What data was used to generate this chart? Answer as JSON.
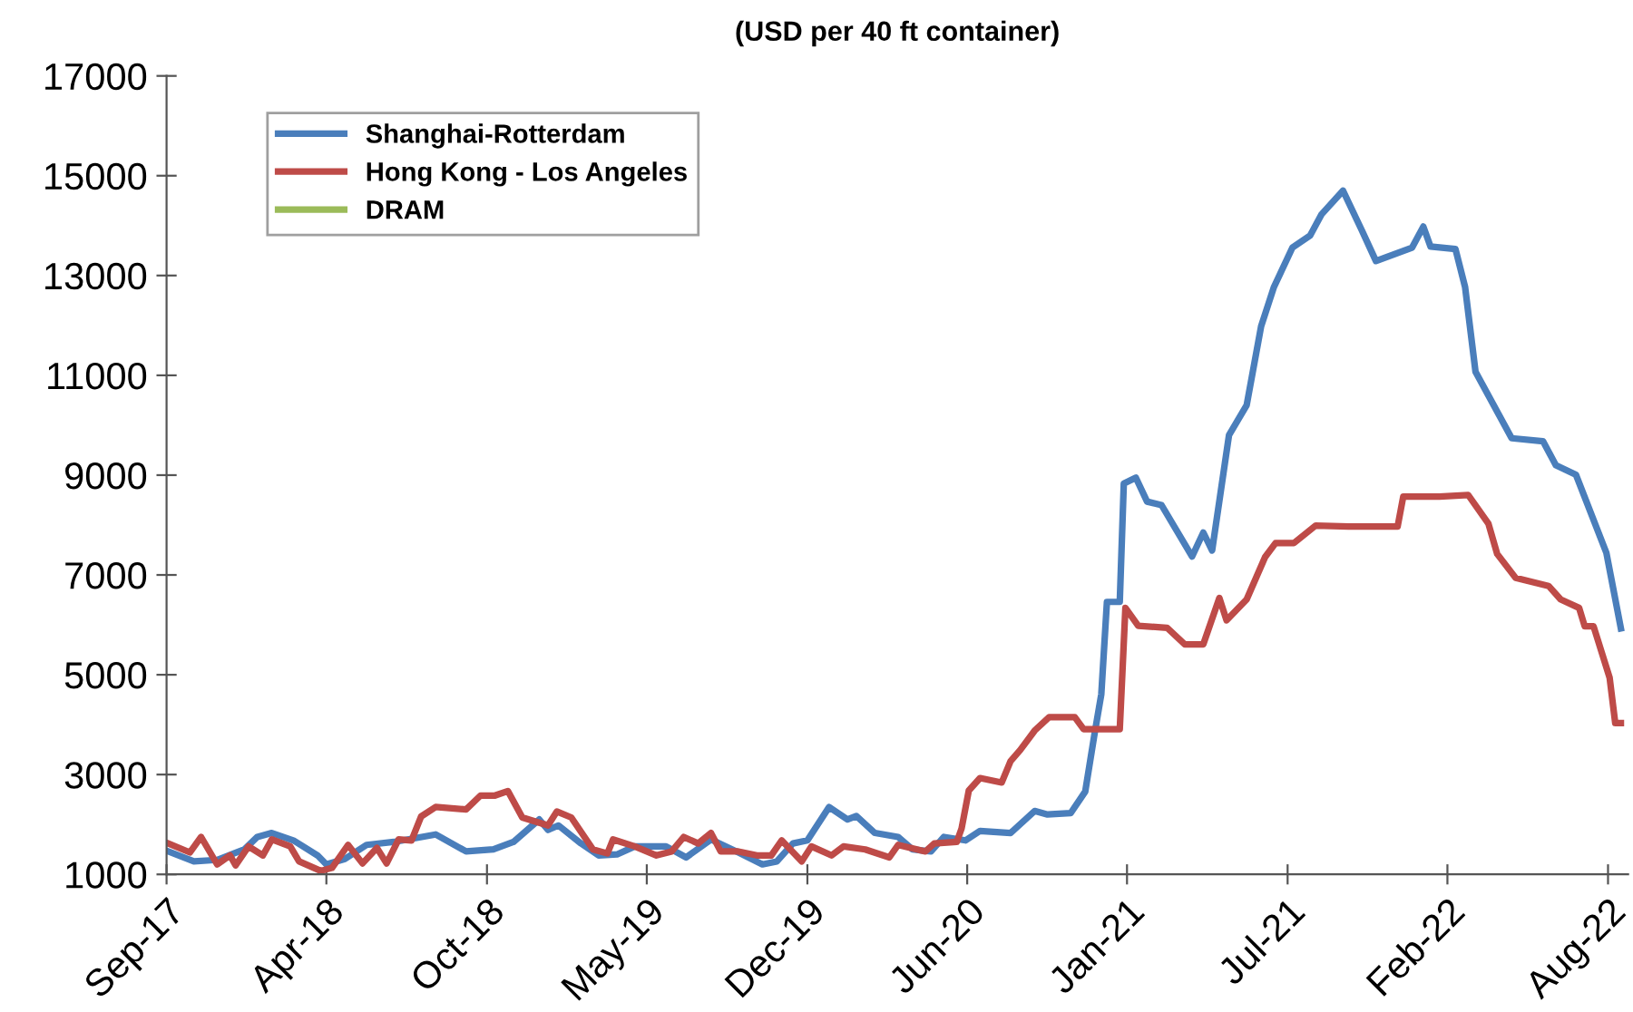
{
  "chart_data": {
    "type": "line",
    "title": "(USD per 40 ft container)",
    "xlim": [
      "2017-09-25",
      "2022-09-19"
    ],
    "ylim": [
      1000,
      17000
    ],
    "xticks": [
      {
        "value": "2017-09-25",
        "label": "Sep-17"
      },
      {
        "value": "2018-04-12",
        "label": "Apr-18"
      },
      {
        "value": "2018-10-29",
        "label": "Oct-18"
      },
      {
        "value": "2019-05-16",
        "label": "May-19"
      },
      {
        "value": "2019-12-02",
        "label": "Dec-19"
      },
      {
        "value": "2020-06-18",
        "label": "Jun-20"
      },
      {
        "value": "2021-01-03",
        "label": "Jan-21"
      },
      {
        "value": "2021-07-22",
        "label": "Jul-21"
      },
      {
        "value": "2022-02-06",
        "label": "Feb-22"
      },
      {
        "value": "2022-08-25",
        "label": "Aug-22"
      }
    ],
    "yticks": [
      1000,
      3000,
      5000,
      7000,
      9000,
      11000,
      13000,
      15000,
      17000
    ],
    "grid": false,
    "legend": "top left",
    "marker": "none",
    "line_style": "solid",
    "series": [
      {
        "name": "Shanghai-Rotterdam",
        "color": "#4a7ebb",
        "x": [
          "2017-09-27",
          "2017-10-29",
          "2017-11-27",
          "2017-12-31",
          "2018-01-16",
          "2018-02-03",
          "2018-03-02",
          "2018-04-01",
          "2018-04-12",
          "2018-05-05",
          "2018-06-01",
          "2018-07-05",
          "2018-08-26",
          "2018-10-03",
          "2018-11-06",
          "2018-12-01",
          "2019-01-02",
          "2019-01-13",
          "2019-01-26",
          "2019-02-23",
          "2019-03-17",
          "2019-04-09",
          "2019-05-01",
          "2019-06-09",
          "2019-07-04",
          "2019-08-04",
          "2019-09-07",
          "2019-10-07",
          "2019-10-25",
          "2019-11-14",
          "2019-12-02",
          "2019-12-29",
          "2020-01-21",
          "2020-02-01",
          "2020-02-24",
          "2020-03-24",
          "2020-04-11",
          "2020-05-04",
          "2020-05-20",
          "2020-06-16",
          "2020-07-04",
          "2020-08-11",
          "2020-09-10",
          "2020-09-26",
          "2020-10-25",
          "2020-11-12",
          "2020-11-23",
          "2020-12-02",
          "2020-12-09",
          "2020-12-25",
          "2020-12-30",
          "2021-01-14",
          "2021-01-28",
          "2021-02-15",
          "2021-03-25",
          "2021-04-08",
          "2021-04-19",
          "2021-05-10",
          "2021-06-01",
          "2021-06-19",
          "2021-07-05",
          "2021-07-28",
          "2021-08-19",
          "2021-09-02",
          "2021-09-29",
          "2021-10-22",
          "2021-11-09",
          "2021-12-24",
          "2022-01-07",
          "2022-01-16",
          "2022-02-16",
          "2022-02-28",
          "2022-03-13",
          "2022-04-27",
          "2022-06-05",
          "2022-06-21",
          "2022-07-16",
          "2022-08-23",
          "2022-09-10"
        ],
        "values": [
          1460,
          1260,
          1290,
          1500,
          1750,
          1830,
          1680,
          1380,
          1200,
          1310,
          1590,
          1650,
          1800,
          1460,
          1500,
          1650,
          2100,
          1890,
          1980,
          1620,
          1380,
          1400,
          1560,
          1560,
          1340,
          1700,
          1440,
          1200,
          1260,
          1620,
          1680,
          2350,
          2100,
          2170,
          1830,
          1750,
          1500,
          1460,
          1750,
          1680,
          1870,
          1830,
          2270,
          2200,
          2230,
          2660,
          3760,
          4610,
          6460,
          6460,
          8830,
          8950,
          8470,
          8400,
          7370,
          7850,
          7490,
          9800,
          10400,
          11980,
          12770,
          13560,
          13800,
          14220,
          14700,
          13920,
          13290,
          13560,
          13980,
          13580,
          13530,
          12770,
          11070,
          9740,
          9680,
          9200,
          9010,
          7440,
          5930
        ]
      },
      {
        "name": "Hong Kong - Los Angeles",
        "color": "#be4b48",
        "x": [
          "2017-09-27",
          "2017-10-24",
          "2017-11-07",
          "2017-11-27",
          "2017-12-13",
          "2017-12-20",
          "2018-01-05",
          "2018-01-23",
          "2018-02-03",
          "2018-02-26",
          "2018-03-09",
          "2018-04-05",
          "2018-04-19",
          "2018-05-09",
          "2018-05-27",
          "2018-06-14",
          "2018-06-26",
          "2018-07-11",
          "2018-07-27",
          "2018-08-08",
          "2018-08-26",
          "2018-10-03",
          "2018-10-21",
          "2018-11-08",
          "2018-11-24",
          "2018-12-12",
          "2019-01-13",
          "2019-01-24",
          "2019-02-11",
          "2019-03-10",
          "2019-03-28",
          "2019-04-04",
          "2019-05-01",
          "2019-05-28",
          "2019-06-16",
          "2019-07-01",
          "2019-07-19",
          "2019-08-04",
          "2019-08-16",
          "2019-09-07",
          "2019-09-30",
          "2019-10-18",
          "2019-10-31",
          "2019-11-25",
          "2019-12-07",
          "2020-01-01",
          "2020-01-16",
          "2020-02-12",
          "2020-03-13",
          "2020-03-24",
          "2020-04-27",
          "2020-05-08",
          "2020-06-05",
          "2020-06-11",
          "2020-06-20",
          "2020-07-04",
          "2020-07-31",
          "2020-08-11",
          "2020-08-23",
          "2020-09-10",
          "2020-09-28",
          "2020-10-30",
          "2020-11-10",
          "2020-12-25",
          "2021-01-01",
          "2021-01-17",
          "2021-02-22",
          "2021-03-16",
          "2021-04-08",
          "2021-04-28",
          "2021-05-07",
          "2021-06-01",
          "2021-06-24",
          "2021-07-07",
          "2021-07-30",
          "2021-08-26",
          "2021-10-06",
          "2021-12-06",
          "2021-12-13",
          "2022-01-27",
          "2022-03-04",
          "2022-03-29",
          "2022-04-09",
          "2022-05-02",
          "2022-06-12",
          "2022-06-27",
          "2022-07-20",
          "2022-07-27",
          "2022-08-07",
          "2022-08-27",
          "2022-09-03",
          "2022-09-10"
        ],
        "values": [
          1620,
          1440,
          1750,
          1200,
          1380,
          1180,
          1560,
          1380,
          1700,
          1560,
          1260,
          1070,
          1130,
          1590,
          1220,
          1530,
          1220,
          1700,
          1680,
          2160,
          2350,
          2300,
          2580,
          2580,
          2670,
          2140,
          1980,
          2260,
          2140,
          1500,
          1420,
          1700,
          1560,
          1380,
          1460,
          1750,
          1620,
          1830,
          1460,
          1460,
          1380,
          1380,
          1680,
          1260,
          1560,
          1380,
          1560,
          1500,
          1340,
          1590,
          1460,
          1620,
          1650,
          1920,
          2680,
          2930,
          2840,
          3270,
          3490,
          3880,
          4150,
          4150,
          3910,
          3910,
          6340,
          5980,
          5940,
          5610,
          5610,
          6540,
          6090,
          6510,
          7360,
          7640,
          7640,
          7990,
          7970,
          7970,
          8570,
          8570,
          8600,
          8030,
          7420,
          6940,
          6780,
          6510,
          6340,
          5970,
          5970,
          4940,
          4030,
          4030
        ]
      },
      {
        "name": "DRAM",
        "color": "#9bbb59"
      }
    ]
  }
}
